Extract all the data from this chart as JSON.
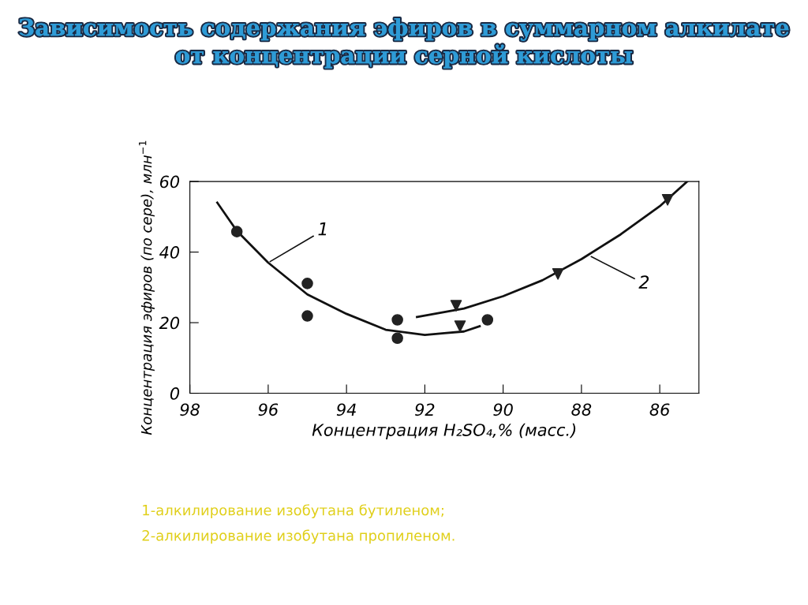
{
  "chart_data": {
    "type": "scatter",
    "title": "Зависимость содержания эфиров в суммарном алкилате от концентрации серной кислоты",
    "xlabel": "Концентрация H₂SO₄,% (масс.)",
    "ylabel": "Концентрация эфиров (по сере), млн$^{−1}$",
    "xlim": [
      98,
      85
    ],
    "xticks": [
      98,
      96,
      94,
      92,
      90,
      88,
      86
    ],
    "ylim": [
      0,
      60
    ],
    "yticks": [
      0,
      20,
      40,
      60
    ],
    "grid": false,
    "legend": false,
    "series": [
      {
        "marker": "circle",
        "color": "#222222",
        "x": [
          96.8,
          95.0,
          95.0,
          92.7,
          92.7,
          90.4
        ],
        "values": [
          45.8,
          31.1,
          21.9,
          20.8,
          15.6,
          20.8
        ]
      },
      {
        "marker": "triangle",
        "color": "#222222",
        "x": [
          91.2,
          91.1,
          88.6,
          85.8
        ],
        "values": [
          24.8,
          19.0,
          33.8,
          54.8
        ]
      },
      {
        "type": "line",
        "marker": "none",
        "line_style": "solid",
        "color": "#111111",
        "x": [
          97.3,
          96.8,
          96.0,
          95.0,
          94.0,
          93.0,
          92.0,
          91.5,
          91.0,
          90.6
        ],
        "values": [
          54,
          46,
          37,
          28,
          22.5,
          18,
          16.5,
          17,
          17.5,
          19
        ]
      },
      {
        "type": "line",
        "marker": "none",
        "line_style": "solid",
        "color": "#111111",
        "x": [
          92.2,
          91.0,
          90.0,
          89.0,
          88.0,
          87.0,
          86.0,
          85.3
        ],
        "values": [
          21.6,
          24,
          27.5,
          32,
          38,
          45,
          53,
          60
        ]
      }
    ],
    "annotations": [
      {
        "text": "1",
        "x": 96.0,
        "y": 37
      },
      {
        "text": "2",
        "x": 87.8,
        "y": 39
      },
      "1-алкилирование изобутана бутиленом;",
      "2-алкилирование изобутана пропиленом."
    ]
  }
}
